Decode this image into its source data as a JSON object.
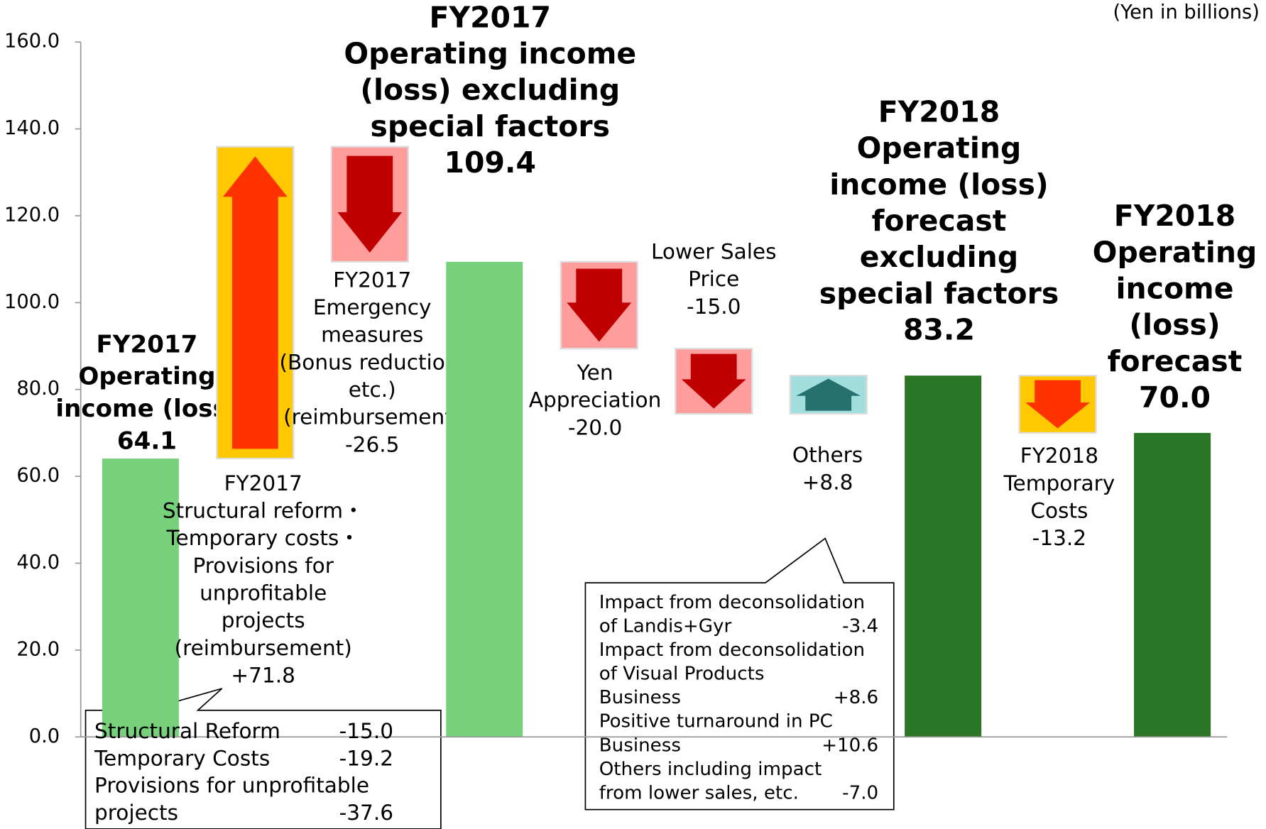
{
  "chart_data": {
    "type": "waterfall",
    "unit_note": "(Yen in billions)",
    "categories": [
      [
        "FY2017",
        "Operating",
        "income (loss)"
      ],
      [
        "FY2017",
        "Structural reform・",
        "Temporary costs・",
        "Provisions for",
        "unprofitable",
        "projects",
        "(reimbursement)"
      ],
      [
        "FY2017",
        "Emergency",
        "measures",
        "(Bonus reduction,",
        "etc.)",
        "(reimbursement)"
      ],
      [
        "FY2017",
        "Operating income",
        "(loss) excluding",
        "special factors"
      ],
      [
        "Yen",
        "Appreciation"
      ],
      [
        "Lower Sales",
        "Price"
      ],
      [
        "Others"
      ],
      [
        "FY2018",
        "Operating",
        "income (loss)",
        "forecast",
        "excluding",
        "special factors"
      ],
      [
        "FY2018",
        "Temporary",
        "Costs"
      ],
      [
        "FY2018",
        "Operating",
        "income",
        "(loss)",
        "forecast"
      ]
    ],
    "measures": [
      "total",
      "relative",
      "relative",
      "total",
      "relative",
      "relative",
      "relative",
      "total",
      "relative",
      "total"
    ],
    "values": [
      64.1,
      71.8,
      -26.5,
      109.4,
      -20.0,
      -15.0,
      8.8,
      83.2,
      -13.2,
      70.0
    ],
    "value_labels": [
      "64.1",
      "+71.8",
      "-26.5",
      "109.4",
      "-20.0",
      "-15.0",
      "+8.8",
      "83.2",
      "-13.2",
      "70.0"
    ],
    "colors": [
      "#77d17a",
      "#ffc800",
      "#ff9c9c",
      "#77d17a",
      "#ff9c9c",
      "#ff9c9c",
      "#a2dede",
      "#2a7526",
      "#ffc800",
      "#2a7526"
    ],
    "arrow_colors": [
      null,
      "#ff3300",
      "#c00000",
      null,
      "#c00000",
      "#c00000",
      "#267070",
      null,
      "#ff3300",
      null
    ],
    "ylim": [
      0,
      160
    ],
    "yticks": [
      {
        "value": 0,
        "label": "0.0"
      },
      {
        "value": 20,
        "label": "20.0"
      },
      {
        "value": 40,
        "label": "40.0"
      },
      {
        "value": 60,
        "label": "60.0"
      },
      {
        "value": 80,
        "label": "80.0"
      },
      {
        "value": 100,
        "label": "100.0"
      },
      {
        "value": 120,
        "label": "120.0"
      },
      {
        "value": 140,
        "label": "140.0"
      },
      {
        "value": 160,
        "label": "160.0"
      }
    ],
    "callouts": [
      {
        "rows": [
          {
            "text": "Structural Reform",
            "value": "-15.0"
          },
          {
            "text": "Temporary Costs",
            "value": "-19.2"
          },
          {
            "text": "Provisions for unprofitable"
          },
          {
            "text": "projects",
            "value": "-37.6"
          }
        ]
      },
      {
        "rows": [
          {
            "text": "Impact from deconsolidation"
          },
          {
            "text": "of Landis+Gyr",
            "value": "-3.4"
          },
          {
            "text": "Impact from deconsolidation"
          },
          {
            "text": "of Visual Products"
          },
          {
            "text": "Business",
            "value": "+8.6"
          },
          {
            "text": "Positive turnaround in PC"
          },
          {
            "text": "Business",
            "value": "+10.6"
          },
          {
            "text": "Others including impact"
          },
          {
            "text": "from lower sales, etc.",
            "value": "-7.0"
          }
        ]
      }
    ]
  }
}
